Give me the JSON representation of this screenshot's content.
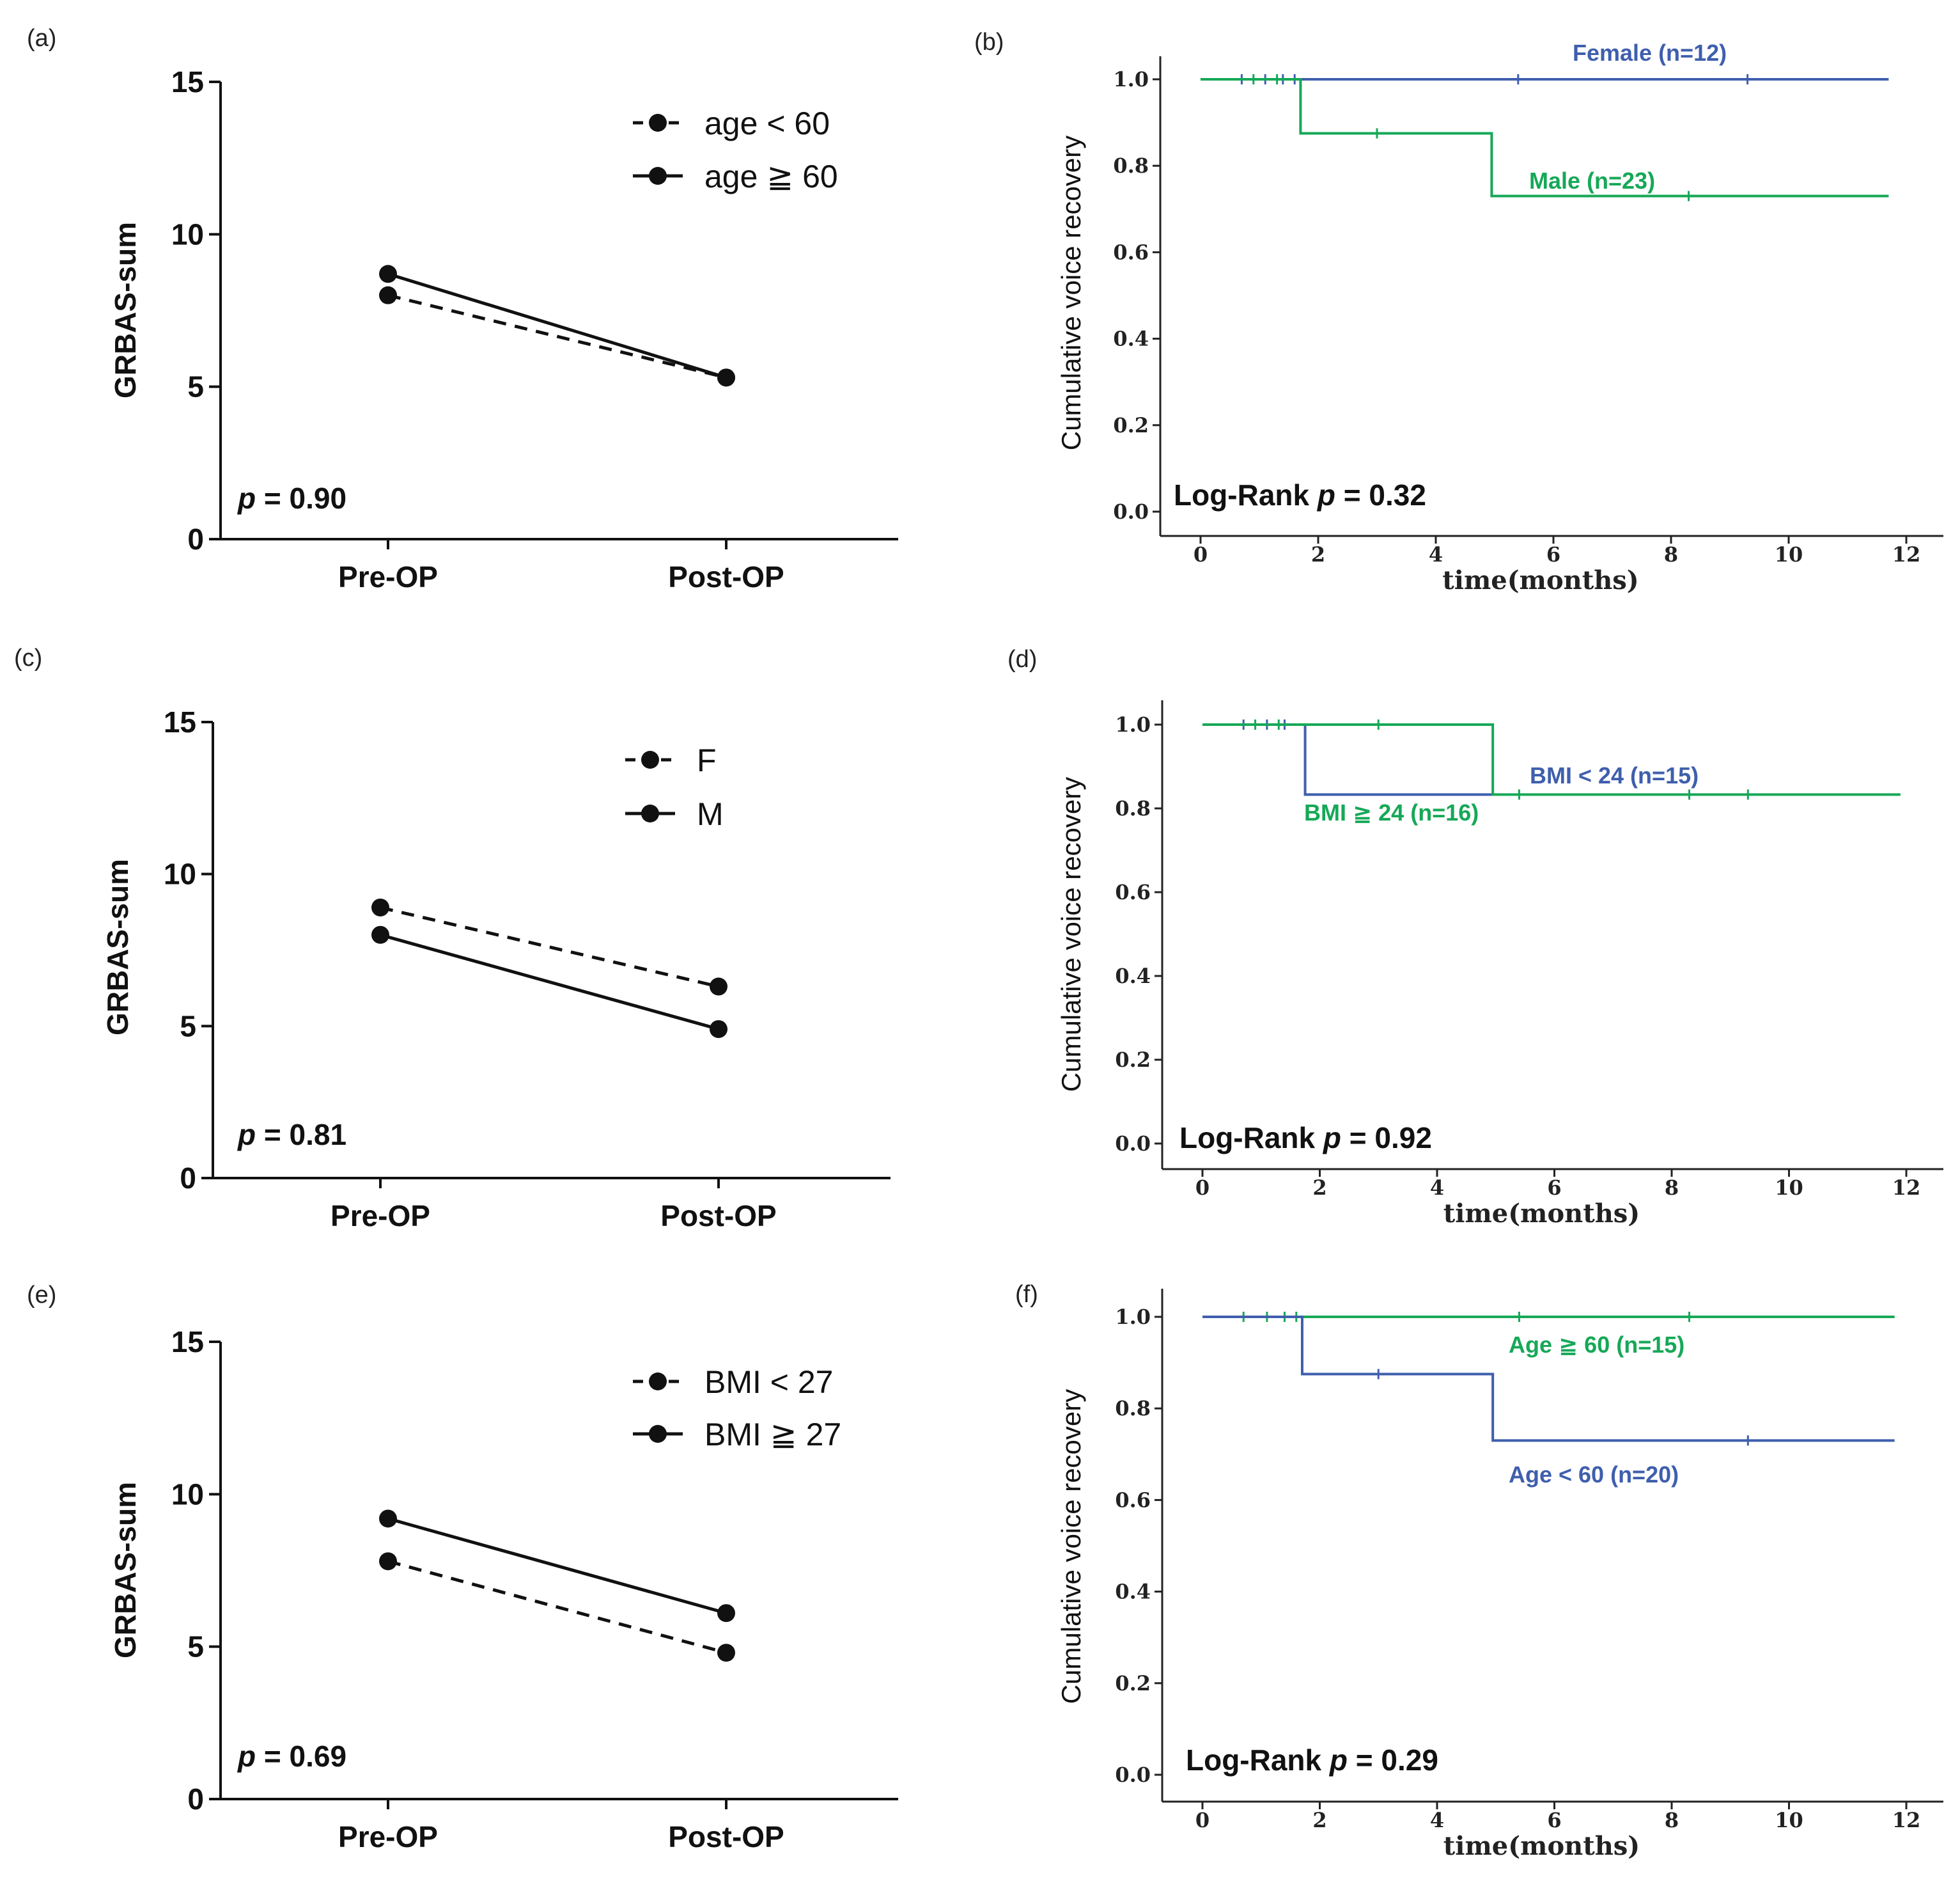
{
  "chart_data": [
    {
      "id": "a",
      "panel_label": "(a)",
      "type": "line",
      "ylabel": "GRBAS-sum",
      "categories": [
        "Pre-OP",
        "Post-OP"
      ],
      "ylim": [
        0,
        15
      ],
      "yticks": [
        0,
        5,
        10,
        15
      ],
      "series": [
        {
          "name": "age < 60",
          "style": "dashed",
          "values": [
            8.0,
            5.3
          ]
        },
        {
          "name": "age ≧ 60",
          "style": "solid",
          "values": [
            8.7,
            5.3
          ]
        }
      ],
      "p_prefix": "p",
      "p_text": " = 0.90"
    },
    {
      "id": "c",
      "panel_label": "(c)",
      "type": "line",
      "ylabel": "GRBAS-sum",
      "categories": [
        "Pre-OP",
        "Post-OP"
      ],
      "ylim": [
        0,
        15
      ],
      "yticks": [
        0,
        5,
        10,
        15
      ],
      "series": [
        {
          "name": "F",
          "style": "dashed",
          "values": [
            8.9,
            6.3
          ]
        },
        {
          "name": "M",
          "style": "solid",
          "values": [
            8.0,
            4.9
          ]
        }
      ],
      "p_prefix": "p",
      "p_text": " = 0.81"
    },
    {
      "id": "e",
      "panel_label": "(e)",
      "type": "line",
      "ylabel": "GRBAS-sum",
      "categories": [
        "Pre-OP",
        "Post-OP"
      ],
      "ylim": [
        0,
        15
      ],
      "yticks": [
        0,
        5,
        10,
        15
      ],
      "series": [
        {
          "name": "BMI < 27",
          "style": "dashed",
          "values": [
            7.8,
            4.8
          ]
        },
        {
          "name": "BMI ≧ 27",
          "style": "solid",
          "values": [
            9.2,
            6.1
          ]
        }
      ],
      "p_prefix": "p",
      "p_text": " = 0.69"
    },
    {
      "id": "b",
      "panel_label": "(b)",
      "type": "line",
      "subtype": "kaplan-meier",
      "ylabel": "Cumulative voice recovery",
      "xlabel": "time(months)",
      "xlim": [
        0,
        12
      ],
      "xticks": [
        0,
        2,
        4,
        6,
        8,
        10,
        12
      ],
      "ylim": [
        0,
        1
      ],
      "yticks": [
        "0.0",
        "0.2",
        "0.4",
        "0.6",
        "0.8",
        "1.0"
      ],
      "series": [
        {
          "name": "Female (n=12)",
          "color": "#3f5fad",
          "steps": [
            [
              0,
              1.0
            ],
            [
              11.7,
              1.0
            ]
          ],
          "censored": [
            [
              0.7,
              1.0
            ],
            [
              1.1,
              1.0
            ],
            [
              1.4,
              1.0
            ],
            [
              1.6,
              1.0
            ],
            [
              5.4,
              1.0
            ],
            [
              9.3,
              1.0
            ]
          ]
        },
        {
          "name": "Male (n=23)",
          "color": "#16a857",
          "steps": [
            [
              0,
              1.0
            ],
            [
              1.7,
              0.875
            ],
            [
              4.95,
              0.73
            ],
            [
              11.7,
              0.73
            ]
          ],
          "censored": [
            [
              0.9,
              1.0
            ],
            [
              1.3,
              1.0
            ],
            [
              3.0,
              0.875
            ],
            [
              8.3,
              0.73
            ]
          ]
        }
      ],
      "p_label": "Log-Rank ",
      "p_prefix": "p",
      "p_text": " = 0.32"
    },
    {
      "id": "d",
      "panel_label": "(d)",
      "type": "line",
      "subtype": "kaplan-meier",
      "ylabel": "Cumulative voice recovery",
      "xlabel": "time(months)",
      "xlim": [
        0,
        12
      ],
      "xticks": [
        0,
        2,
        4,
        6,
        8,
        10,
        12
      ],
      "ylim": [
        0,
        1
      ],
      "yticks": [
        "0.0",
        "0.2",
        "0.4",
        "0.6",
        "0.8",
        "1.0"
      ],
      "series": [
        {
          "name": "BMI < 24 (n=15)",
          "color": "#3f5fad",
          "steps": [
            [
              0,
              1.0
            ],
            [
              1.75,
              0.833
            ],
            [
              4.95,
              0.833
            ]
          ],
          "censored": [
            [
              0.7,
              1.0
            ],
            [
              1.1,
              1.0
            ],
            [
              1.4,
              1.0
            ]
          ]
        },
        {
          "name": "BMI ≧ 24 (n=16)",
          "color": "#16a857",
          "steps": [
            [
              0,
              1.0
            ],
            [
              4.95,
              0.833
            ],
            [
              11.9,
              0.833
            ]
          ],
          "censored": [
            [
              0.9,
              1.0
            ],
            [
              1.3,
              1.0
            ],
            [
              3.0,
              1.0
            ],
            [
              5.4,
              0.833
            ],
            [
              8.3,
              0.833
            ],
            [
              9.3,
              0.833
            ]
          ]
        }
      ],
      "p_label": "Log-Rank ",
      "p_prefix": "p",
      "p_text": " = 0.92"
    },
    {
      "id": "f",
      "panel_label": "(f)",
      "type": "line",
      "subtype": "kaplan-meier",
      "ylabel": "Cumulative voice recovery",
      "xlabel": "time(months)",
      "xlim": [
        0,
        12
      ],
      "xticks": [
        0,
        2,
        4,
        6,
        8,
        10,
        12
      ],
      "ylim": [
        0,
        1
      ],
      "yticks": [
        "0.0",
        "0.2",
        "0.4",
        "0.6",
        "0.8",
        "1.0"
      ],
      "series": [
        {
          "name": "Age ≧ 60 (n=15)",
          "color": "#16a857",
          "steps": [
            [
              0,
              1.0
            ],
            [
              11.8,
              1.0
            ]
          ],
          "censored": [
            [
              0.7,
              1.0
            ],
            [
              1.1,
              1.0
            ],
            [
              1.4,
              1.0
            ],
            [
              1.6,
              1.0
            ],
            [
              5.4,
              1.0
            ],
            [
              8.3,
              1.0
            ]
          ]
        },
        {
          "name": "Age < 60 (n=20)",
          "color": "#3f5fad",
          "steps": [
            [
              0,
              1.0
            ],
            [
              1.7,
              0.875
            ],
            [
              4.95,
              0.73
            ],
            [
              11.8,
              0.73
            ]
          ],
          "censored": [
            [
              3.0,
              0.875
            ],
            [
              9.3,
              0.73
            ]
          ]
        }
      ],
      "p_label": "Log-Rank ",
      "p_prefix": "p",
      "p_text": " = 0.29"
    }
  ]
}
